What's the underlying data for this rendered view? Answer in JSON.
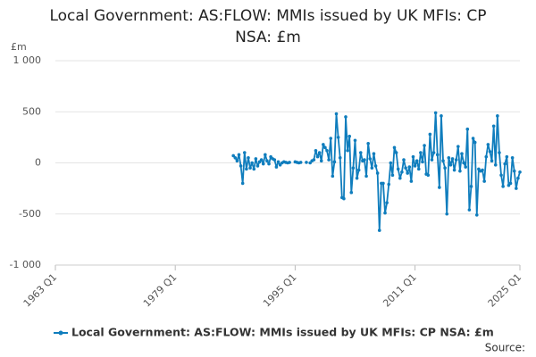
{
  "chart_data": {
    "type": "line",
    "title": "Local Government: AS:FLOW: MMIs issued by UK MFIs: CP NSA: £m",
    "y_unit": "£m",
    "source": "Source:",
    "x": [
      "1986 Q4",
      "1987 Q1",
      "1987 Q2",
      "1987 Q3",
      "1987 Q4",
      "1988 Q1",
      "1988 Q2",
      "1988 Q3",
      "1988 Q4",
      "1989 Q1",
      "1989 Q2",
      "1989 Q3",
      "1989 Q4",
      "1990 Q1",
      "1990 Q2",
      "1990 Q3",
      "1990 Q4",
      "1991 Q1",
      "1991 Q2",
      "1991 Q3",
      "1991 Q4",
      "1992 Q1",
      "1992 Q2",
      "1992 Q3",
      "1992 Q4",
      "1993 Q1",
      "1993 Q2",
      "1993 Q3",
      "1993 Q4",
      "1994 Q1",
      "1994 Q2",
      "1994 Q3",
      "1994 Q4",
      "1995 Q1",
      "1995 Q2",
      "1995 Q3",
      "1995 Q4",
      "1996 Q1",
      "1996 Q2",
      "1996 Q3",
      "1996 Q4",
      "1997 Q1",
      "1997 Q2",
      "1997 Q3",
      "1997 Q4",
      "1998 Q1",
      "1998 Q2",
      "1998 Q3",
      "1998 Q4",
      "1999 Q1",
      "1999 Q2",
      "1999 Q3",
      "1999 Q4",
      "2000 Q1",
      "2000 Q2",
      "2000 Q3",
      "2000 Q4",
      "2001 Q1",
      "2001 Q2",
      "2001 Q3",
      "2001 Q4",
      "2002 Q1",
      "2002 Q2",
      "2002 Q3",
      "2002 Q4",
      "2003 Q1",
      "2003 Q2",
      "2003 Q3",
      "2003 Q4",
      "2004 Q1",
      "2004 Q2",
      "2004 Q3",
      "2004 Q4",
      "2005 Q1",
      "2005 Q2",
      "2005 Q3",
      "2005 Q4",
      "2006 Q1",
      "2006 Q2",
      "2006 Q3",
      "2006 Q4",
      "2007 Q1",
      "2007 Q2",
      "2007 Q3",
      "2007 Q4",
      "2008 Q1",
      "2008 Q2",
      "2008 Q3",
      "2008 Q4",
      "2009 Q1",
      "2009 Q2",
      "2009 Q3",
      "2009 Q4",
      "2010 Q1",
      "2010 Q2",
      "2010 Q3",
      "2010 Q4",
      "2011 Q1",
      "2011 Q2",
      "2011 Q3",
      "2011 Q4",
      "2012 Q1",
      "2012 Q2",
      "2012 Q3",
      "2012 Q4",
      "2013 Q1",
      "2013 Q2",
      "2013 Q3",
      "2013 Q4",
      "2014 Q1",
      "2014 Q2",
      "2014 Q3",
      "2014 Q4",
      "2015 Q1",
      "2015 Q2",
      "2015 Q3",
      "2015 Q4",
      "2016 Q1",
      "2016 Q2",
      "2016 Q3",
      "2016 Q4",
      "2017 Q1",
      "2017 Q2",
      "2017 Q3",
      "2017 Q4",
      "2018 Q1",
      "2018 Q2",
      "2018 Q3",
      "2018 Q4",
      "2019 Q1",
      "2019 Q2",
      "2019 Q3",
      "2019 Q4",
      "2020 Q1",
      "2020 Q2",
      "2020 Q3",
      "2020 Q4",
      "2021 Q1",
      "2021 Q2",
      "2021 Q3",
      "2021 Q4",
      "2022 Q1",
      "2022 Q2",
      "2022 Q3",
      "2022 Q4",
      "2023 Q1",
      "2023 Q2",
      "2023 Q3",
      "2023 Q4",
      "2024 Q1",
      "2024 Q2",
      "2024 Q3",
      "2024 Q4",
      "2025 Q1"
    ],
    "series": [
      {
        "name": "Local Government: AS:FLOW: MMIs issued by UK MFIs: CP NSA: £m",
        "color": "#0f7dbd",
        "values": [
          70,
          50,
          20,
          80,
          -30,
          -200,
          100,
          -60,
          50,
          -50,
          0,
          -60,
          40,
          -30,
          10,
          30,
          -10,
          80,
          20,
          -10,
          60,
          40,
          30,
          -40,
          10,
          -20,
          0,
          10,
          5,
          0,
          5,
          null,
          null,
          10,
          5,
          0,
          5,
          null,
          null,
          5,
          null,
          0,
          20,
          30,
          120,
          60,
          100,
          20,
          180,
          150,
          120,
          30,
          240,
          -130,
          10,
          480,
          250,
          50,
          -340,
          -350,
          450,
          120,
          260,
          -290,
          -50,
          220,
          -150,
          -70,
          100,
          20,
          30,
          -130,
          190,
          40,
          -50,
          90,
          -30,
          -100,
          -660,
          -200,
          -200,
          -490,
          -390,
          -210,
          0,
          -120,
          150,
          100,
          -60,
          -150,
          -90,
          30,
          -50,
          -100,
          -40,
          -180,
          60,
          -30,
          20,
          -60,
          100,
          10,
          170,
          -110,
          -120,
          280,
          30,
          100,
          490,
          80,
          -240,
          460,
          20,
          -50,
          -500,
          50,
          -20,
          40,
          -70,
          30,
          160,
          -80,
          90,
          0,
          -40,
          330,
          -460,
          -230,
          240,
          200,
          -510,
          -60,
          -80,
          -70,
          -180,
          60,
          180,
          110,
          20,
          360,
          -20,
          460,
          100,
          -120,
          -230,
          -10,
          60,
          -220,
          -200,
          50,
          -80,
          -250,
          -150,
          -90
        ]
      }
    ],
    "xlim": [
      "1963 Q1",
      "2025 Q1"
    ],
    "xticks": [
      "1963 Q1",
      "1979 Q1",
      "1995 Q1",
      "2011 Q1",
      "2025 Q1"
    ],
    "ylim": [
      -1000,
      1000
    ],
    "yticks": [
      {
        "value": -1000,
        "label": "-1 000"
      },
      -500,
      0,
      500,
      {
        "value": 1000,
        "label": "1 000"
      }
    ],
    "grid": true
  }
}
